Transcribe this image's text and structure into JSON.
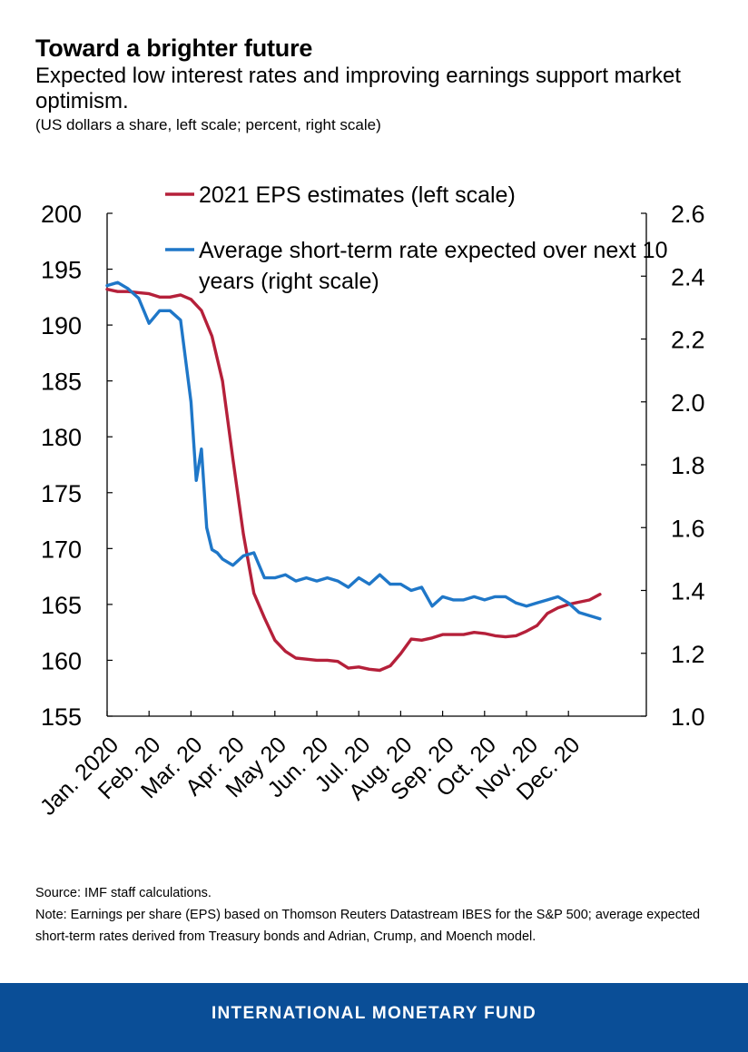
{
  "header": {
    "title": "Toward a brighter future",
    "subtitle": "Expected low interest rates and improving earnings support market optimism.",
    "units": "(US dollars a share, left scale; percent, right scale)"
  },
  "chart_data": {
    "type": "line",
    "title": "Toward a brighter future",
    "x_labels": [
      "Jan. 2020",
      "Feb. 20",
      "Mar. 20",
      "Apr. 20",
      "May 20",
      "Jun. 20",
      "Jul. 20",
      "Aug. 20",
      "Sep. 20",
      "Oct. 20",
      "Nov. 20",
      "Dec. 20"
    ],
    "y_left": {
      "label": "US dollars a share",
      "range": [
        155,
        200
      ],
      "ticks": [
        155,
        160,
        165,
        170,
        175,
        180,
        185,
        190,
        195,
        200
      ]
    },
    "y_right": {
      "label": "percent",
      "range": [
        1.0,
        2.6
      ],
      "ticks": [
        "1.0",
        "1.2",
        "1.4",
        "1.6",
        "1.8",
        "2.0",
        "2.2",
        "2.4",
        "2.6"
      ]
    },
    "legend_position": "top-center",
    "grid": false,
    "series": [
      {
        "name": "2021 EPS estimates (left scale)",
        "axis": "left",
        "color": "#b5203a",
        "x": [
          0,
          0.25,
          0.5,
          0.75,
          1,
          1.25,
          1.5,
          1.75,
          2,
          2.25,
          2.5,
          2.75,
          3,
          3.25,
          3.5,
          3.75,
          4,
          4.25,
          4.5,
          4.75,
          5,
          5.25,
          5.5,
          5.75,
          6,
          6.25,
          6.5,
          6.75,
          7,
          7.25,
          7.5,
          7.75,
          8,
          8.25,
          8.5,
          8.75,
          9,
          9.25,
          9.5,
          9.75,
          10,
          10.25,
          10.5,
          10.75,
          11,
          11.25,
          11.5,
          11.75
        ],
        "values": [
          193.2,
          193,
          193,
          192.9,
          192.8,
          192.5,
          192.5,
          192.7,
          192.3,
          191.3,
          189,
          185,
          178,
          171.3,
          166,
          163.8,
          161.8,
          160.8,
          160.2,
          160.1,
          160.0,
          160.0,
          159.9,
          159.3,
          159.4,
          159.2,
          159.1,
          159.5,
          160.6,
          161.9,
          161.8,
          162.0,
          162.3,
          162.3,
          162.3,
          162.5,
          162.4,
          162.2,
          162.1,
          162.2,
          162.6,
          163.1,
          164.2,
          164.7,
          165.0,
          165.2,
          165.4,
          165.9
        ]
      },
      {
        "name": "Average short-term rate expected over next 10 years (right scale)",
        "axis": "right",
        "color": "#1f77c8",
        "x": [
          0,
          0.25,
          0.5,
          0.75,
          1,
          1.25,
          1.5,
          1.75,
          2,
          2.125,
          2.25,
          2.375,
          2.5,
          2.625,
          2.75,
          3,
          3.25,
          3.5,
          3.75,
          4,
          4.25,
          4.5,
          4.75,
          5,
          5.25,
          5.5,
          5.75,
          6,
          6.25,
          6.5,
          6.75,
          7,
          7.25,
          7.5,
          7.75,
          8,
          8.25,
          8.5,
          8.75,
          9,
          9.25,
          9.5,
          9.75,
          10,
          10.25,
          10.5,
          10.75,
          11,
          11.25,
          11.5,
          11.75
        ],
        "values": [
          2.37,
          2.38,
          2.36,
          2.33,
          2.25,
          2.29,
          2.29,
          2.26,
          2.0,
          1.75,
          1.85,
          1.6,
          1.53,
          1.52,
          1.5,
          1.48,
          1.51,
          1.52,
          1.44,
          1.44,
          1.45,
          1.43,
          1.44,
          1.43,
          1.44,
          1.43,
          1.41,
          1.44,
          1.42,
          1.45,
          1.42,
          1.42,
          1.4,
          1.41,
          1.35,
          1.38,
          1.37,
          1.37,
          1.38,
          1.37,
          1.38,
          1.38,
          1.36,
          1.35,
          1.36,
          1.37,
          1.38,
          1.36,
          1.33,
          1.32,
          1.31
        ]
      }
    ]
  },
  "notes": {
    "source": "Source: IMF staff calculations.",
    "note": "Note: Earnings per share (EPS) based on Thomson Reuters Datastream IBES for the S&P 500; average expected short-term rates derived from Treasury bonds and Adrian, Crump, and Moench model."
  },
  "footer": {
    "org": "INTERNATIONAL MONETARY FUND"
  }
}
